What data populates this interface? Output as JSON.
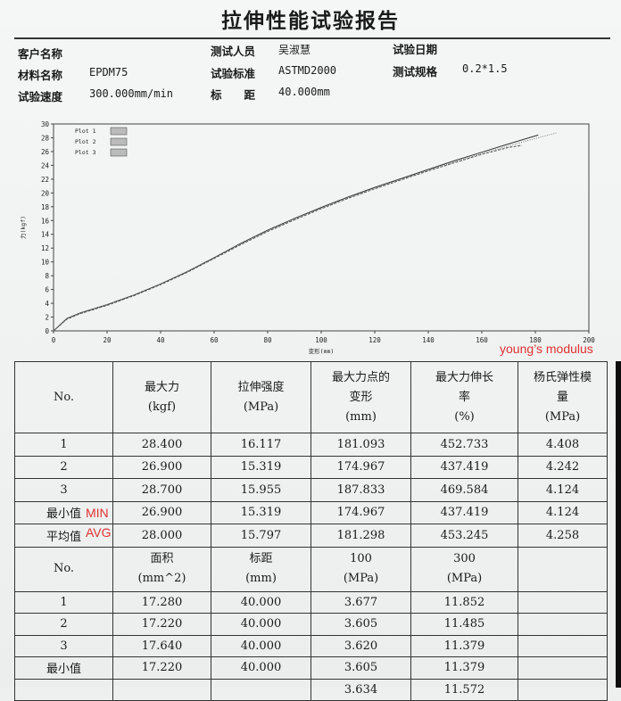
{
  "title": "拉伸性能试验报告",
  "meta": {
    "customer_label": "客户名称",
    "customer_value": "",
    "tester_label": "测试人员",
    "tester_value": "吴淑慧",
    "date_label": "试验日期",
    "date_value": "",
    "material_label": "材料名称",
    "material_value": "EPDM75",
    "standard_label": "试验标准",
    "standard_value": "ASTMD2000",
    "spec_label": "测试规格",
    "spec_value": "0.2*1.5",
    "speed_label": "试验速度",
    "speed_value": "300.000mm/min",
    "gauge_label": "标　　距",
    "gauge_value": "40.000mm"
  },
  "chart_data": {
    "type": "line",
    "xlabel": "变形(mm)",
    "ylabel": "力(kgf)",
    "xlim": [
      0,
      200
    ],
    "ylim": [
      0,
      30
    ],
    "xticks": [
      "0",
      "20",
      "40",
      "60",
      "80",
      "100",
      "120",
      "140",
      "160",
      "180",
      "200"
    ],
    "yticks": [
      "0",
      "2",
      "4",
      "6",
      "8",
      "10",
      "12",
      "14",
      "16",
      "18",
      "20",
      "22",
      "24",
      "26",
      "28",
      "30"
    ],
    "legend": "top-left",
    "series": [
      {
        "name": "Plot 1",
        "x": [
          0,
          5,
          10,
          20,
          30,
          40,
          50,
          60,
          70,
          80,
          90,
          100,
          110,
          120,
          130,
          140,
          150,
          160,
          170,
          181.1
        ],
        "y": [
          0,
          1.8,
          2.6,
          3.8,
          5.2,
          6.8,
          8.6,
          10.6,
          12.7,
          14.6,
          16.3,
          17.9,
          19.4,
          20.8,
          22.1,
          23.4,
          24.7,
          25.9,
          27.1,
          28.4
        ]
      },
      {
        "name": "Plot 2",
        "x": [
          0,
          5,
          10,
          20,
          30,
          40,
          50,
          60,
          70,
          80,
          90,
          100,
          110,
          120,
          130,
          140,
          150,
          160,
          170,
          175.0
        ],
        "y": [
          0,
          1.7,
          2.5,
          3.7,
          5.1,
          6.7,
          8.5,
          10.5,
          12.5,
          14.4,
          16.1,
          17.7,
          19.2,
          20.6,
          21.9,
          23.2,
          24.4,
          25.6,
          26.6,
          26.9
        ]
      },
      {
        "name": "Plot 3",
        "x": [
          0,
          5,
          10,
          20,
          30,
          40,
          50,
          60,
          70,
          80,
          90,
          100,
          110,
          120,
          130,
          140,
          150,
          160,
          170,
          180,
          187.8
        ],
        "y": [
          0,
          1.8,
          2.6,
          3.8,
          5.2,
          6.8,
          8.6,
          10.6,
          12.6,
          14.5,
          16.2,
          17.8,
          19.3,
          20.7,
          22.0,
          23.3,
          24.5,
          25.7,
          26.8,
          27.9,
          28.7
        ]
      }
    ]
  },
  "table1": {
    "headers": [
      [
        "No."
      ],
      [
        "最大力",
        "(kgf)"
      ],
      [
        "拉伸强度",
        "(MPa)"
      ],
      [
        "最大力点的",
        "变形",
        "(mm)"
      ],
      [
        "最大力伸长",
        "率",
        "(%)"
      ],
      [
        "杨氏弹性模",
        "量",
        "(MPa)"
      ]
    ],
    "rows": [
      [
        "1",
        "28.400",
        "16.117",
        "181.093",
        "452.733",
        "4.408"
      ],
      [
        "2",
        "26.900",
        "15.319",
        "174.967",
        "437.419",
        "4.242"
      ],
      [
        "3",
        "28.700",
        "15.955",
        "187.833",
        "469.584",
        "4.124"
      ],
      [
        "最小值",
        "26.900",
        "15.319",
        "174.967",
        "437.419",
        "4.124"
      ],
      [
        "平均值",
        "28.000",
        "15.797",
        "181.298",
        "453.245",
        "4.258"
      ]
    ]
  },
  "table2": {
    "headers": [
      [
        "No."
      ],
      [
        "面积",
        "(mm^2)"
      ],
      [
        "标距",
        "(mm)"
      ],
      [
        "100",
        "(MPa)"
      ],
      [
        "300",
        "(MPa)"
      ],
      [
        ""
      ]
    ],
    "rows": [
      [
        "1",
        "17.280",
        "40.000",
        "3.677",
        "11.852",
        ""
      ],
      [
        "2",
        "17.220",
        "40.000",
        "3.605",
        "11.485",
        ""
      ],
      [
        "3",
        "17.640",
        "40.000",
        "3.620",
        "11.379",
        ""
      ],
      [
        "最小值",
        "17.220",
        "40.000",
        "3.605",
        "11.379",
        ""
      ],
      [
        "",
        "",
        "",
        "3.634",
        "11.572",
        ""
      ]
    ]
  },
  "annotations": {
    "youngs": "young’s modulus",
    "min": "MIN",
    "avg": "AVG"
  },
  "colors": {
    "annotation": "#e03030",
    "ink": "#1a1a1a"
  }
}
